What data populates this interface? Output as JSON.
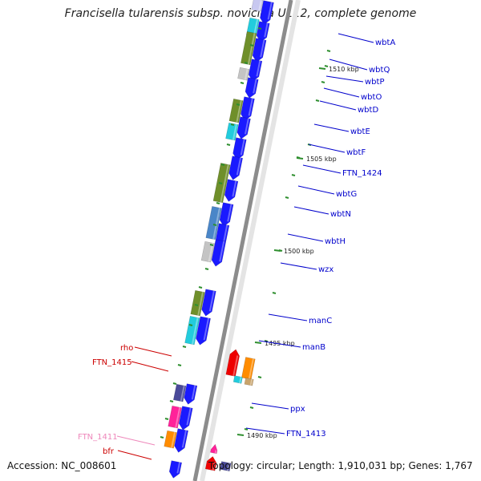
{
  "title": "Francisella tularensis subsp. novicida U112, complete genome",
  "accession": "Accession: NC_008601",
  "summary": "Topology: circular; Length: 1,910,031 bp; Genes: 1,767",
  "colors": {
    "backbone": "#8c8c8c",
    "forward_label": "#0000cc",
    "reverse_label": "#cc0000",
    "pseudo_label": "#ee88bb",
    "tick": "#2f8f2f"
  },
  "position_marks": [
    "1510 kbp",
    "1505 kbp",
    "1500 kbp",
    "1495 kbp",
    "1490 kbp"
  ],
  "right_genes": [
    "wbtA",
    "wbtQ",
    "wbtP",
    "wbtO",
    "wbtD",
    "wbtE",
    "wbtF",
    "FTN_1424",
    "wbtG",
    "wbtN",
    "wbtH",
    "wzx",
    "manC",
    "manB",
    "ppx",
    "FTN_1413"
  ],
  "left_genes": [
    "rho",
    "FTN_1415",
    "FTN_1411",
    "bfr"
  ]
}
